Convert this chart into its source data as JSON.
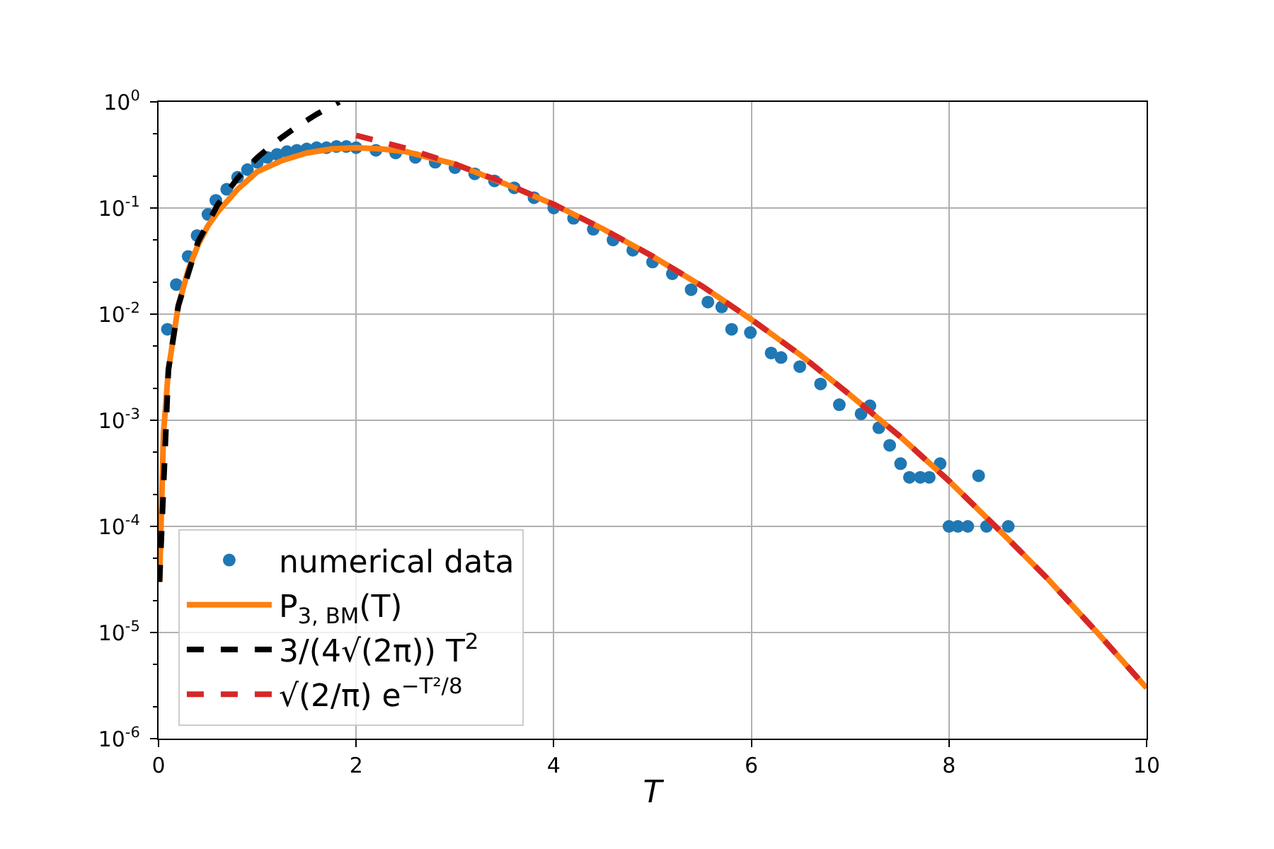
{
  "chart_data": {
    "type": "line",
    "xlabel": "T",
    "xlim": [
      0,
      10
    ],
    "xticks": [
      0,
      2,
      4,
      6,
      8,
      10
    ],
    "ylim": [
      1e-06,
      1
    ],
    "log": "y",
    "yticks": [
      {
        "value": 1e-06,
        "label": "10$^{-6}$"
      },
      {
        "value": 1e-05,
        "label": "10$^{-5}$"
      },
      {
        "value": 0.0001,
        "label": "10$^{-4}$"
      },
      {
        "value": 0.001,
        "label": "10$^{-3}$"
      },
      {
        "value": 0.01,
        "label": "10$^{-2}$"
      },
      {
        "value": 0.1,
        "label": "10$^{-1}$"
      },
      {
        "value": 1,
        "label": "10$^{0}$"
      }
    ],
    "grid": true,
    "legend": "bottom left",
    "series": [
      {
        "name": "numerical data",
        "type": "scatter",
        "marker": "circle",
        "color": "#1f77b4",
        "x": [
          0.09,
          0.18,
          0.3,
          0.39,
          0.5,
          0.58,
          0.69,
          0.8,
          0.9,
          1.0,
          1.1,
          1.2,
          1.3,
          1.4,
          1.5,
          1.6,
          1.7,
          1.8,
          1.9,
          2.0,
          2.2,
          2.4,
          2.6,
          2.8,
          3.0,
          3.2,
          3.4,
          3.6,
          3.8,
          4.0,
          4.2,
          4.4,
          4.6,
          4.8,
          5.0,
          5.2,
          5.39,
          5.56,
          5.7,
          5.8,
          5.99,
          6.2,
          6.3,
          6.49,
          6.7,
          6.89,
          7.11,
          7.2,
          7.29,
          7.4,
          7.51,
          7.6,
          7.71,
          7.8,
          7.91,
          8.0,
          8.09,
          8.19,
          8.3,
          8.38,
          8.6
        ],
        "values": [
          0.0072,
          0.019,
          0.035,
          0.055,
          0.087,
          0.118,
          0.15,
          0.195,
          0.23,
          0.27,
          0.3,
          0.32,
          0.34,
          0.35,
          0.36,
          0.37,
          0.37,
          0.38,
          0.38,
          0.37,
          0.35,
          0.33,
          0.3,
          0.27,
          0.24,
          0.21,
          0.18,
          0.155,
          0.125,
          0.1,
          0.08,
          0.063,
          0.05,
          0.04,
          0.031,
          0.024,
          0.017,
          0.013,
          0.0117,
          0.0072,
          0.0067,
          0.0043,
          0.0039,
          0.0032,
          0.0022,
          0.0014,
          0.00115,
          0.00137,
          0.00085,
          0.00058,
          0.00039,
          0.00029,
          0.00029,
          0.00029,
          0.00039,
          0.0001,
          0.0001,
          0.0001,
          0.0003,
          0.0001,
          0.0001
        ]
      },
      {
        "name": "P$_{3, BM}$(T)",
        "line_style": "solid",
        "color": "#ff7f0e",
        "x": [
          0.01,
          0.05,
          0.1,
          0.2,
          0.3,
          0.4,
          0.5,
          0.6,
          0.8,
          1.0,
          1.25,
          1.5,
          1.75,
          2.0,
          2.25,
          2.5,
          3.0,
          3.5,
          4.0,
          4.5,
          5.0,
          5.5,
          6.0,
          6.5,
          7.0,
          7.5,
          8.0,
          8.5,
          9.0,
          9.5,
          10.0
        ],
        "values": [
          3e-05,
          0.00075,
          0.003,
          0.012,
          0.026,
          0.045,
          0.068,
          0.092,
          0.15,
          0.22,
          0.28,
          0.33,
          0.36,
          0.37,
          0.36,
          0.34,
          0.26,
          0.17,
          0.108,
          0.0634,
          0.0351,
          0.0184,
          0.0089,
          0.0041,
          0.00173,
          0.00071,
          0.000268,
          9.4e-05,
          3.2e-05,
          1e-05,
          3e-06
        ]
      },
      {
        "name": "3/(4√(2π)) T$^{2}$",
        "line_style": "dashed",
        "color": "#000000",
        "x": [
          0.01,
          0.1,
          0.2,
          0.4,
          0.6,
          0.8,
          1.0,
          1.2,
          1.4,
          1.6,
          1.83
        ],
        "values": [
          3e-05,
          0.003,
          0.012,
          0.048,
          0.108,
          0.191,
          0.299,
          0.43,
          0.586,
          0.765,
          1.0
        ]
      },
      {
        "name": "√(2/π) e$^{−T²/8}$",
        "line_style": "dashed",
        "color": "#d62728",
        "x": [
          2.0,
          2.5,
          3.0,
          3.5,
          4.0,
          4.5,
          5.0,
          5.5,
          6.0,
          6.5,
          7.0,
          7.5,
          8.0,
          8.5,
          9.0,
          9.5,
          10.0
        ],
        "values": [
          0.484,
          0.366,
          0.259,
          0.173,
          0.108,
          0.0634,
          0.0351,
          0.0184,
          0.0089,
          0.0041,
          0.00173,
          0.00071,
          0.000268,
          9.4e-05,
          3.2e-05,
          1e-05,
          3e-06
        ]
      }
    ]
  }
}
